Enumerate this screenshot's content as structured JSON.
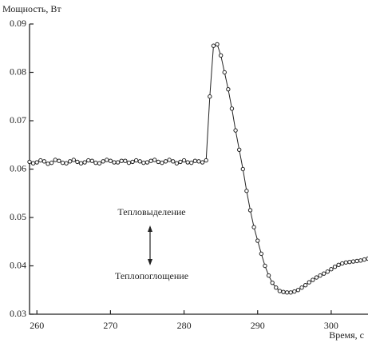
{
  "chart_data": {
    "type": "line",
    "y_label": "Мощность, Вт",
    "x_label": "Время, с",
    "annotations": [
      "Тепловыделение",
      "Теплопоглощение"
    ],
    "xlim": [
      259,
      305
    ],
    "xticks": [
      260,
      270,
      280,
      290,
      300
    ],
    "ylim": [
      0.03,
      0.09
    ],
    "yticks": [
      0.03,
      0.04,
      0.05,
      0.06,
      0.07,
      0.08,
      0.09
    ],
    "x": [
      259,
      259.5,
      260,
      260.5,
      261,
      261.5,
      262,
      262.5,
      263,
      263.5,
      264,
      264.5,
      265,
      265.5,
      266,
      266.5,
      267,
      267.5,
      268,
      268.5,
      269,
      269.5,
      270,
      270.5,
      271,
      271.5,
      272,
      272.5,
      273,
      273.5,
      274,
      274.5,
      275,
      275.5,
      276,
      276.5,
      277,
      277.5,
      278,
      278.5,
      279,
      279.5,
      280,
      280.5,
      281,
      281.5,
      282,
      282.5,
      283,
      283.5,
      284,
      284.5,
      285,
      285.5,
      286,
      286.5,
      287,
      287.5,
      288,
      288.5,
      289,
      289.5,
      290,
      290.5,
      291,
      291.5,
      292,
      292.5,
      293,
      293.5,
      294,
      294.5,
      295,
      295.5,
      296,
      296.5,
      297,
      297.5,
      298,
      298.5,
      299,
      299.5,
      300,
      300.5,
      301,
      301.5,
      302,
      302.5,
      303,
      303.5,
      304,
      304.5,
      305
    ],
    "series": [
      {
        "color": "#222",
        "values": [
          0.0615,
          0.0612,
          0.0614,
          0.0618,
          0.0616,
          0.0611,
          0.0613,
          0.0619,
          0.0617,
          0.0613,
          0.0612,
          0.0616,
          0.0619,
          0.0615,
          0.0612,
          0.0614,
          0.0618,
          0.0617,
          0.0613,
          0.0612,
          0.0616,
          0.0619,
          0.0617,
          0.0614,
          0.0614,
          0.0617,
          0.0617,
          0.0613,
          0.0615,
          0.0618,
          0.0616,
          0.0613,
          0.0614,
          0.0617,
          0.0619,
          0.0615,
          0.0613,
          0.0616,
          0.0619,
          0.0616,
          0.0612,
          0.0615,
          0.0618,
          0.0614,
          0.0613,
          0.0617,
          0.0616,
          0.0614,
          0.0618,
          0.075,
          0.0855,
          0.0858,
          0.0835,
          0.08,
          0.0765,
          0.0725,
          0.068,
          0.064,
          0.06,
          0.0555,
          0.0515,
          0.048,
          0.0452,
          0.0425,
          0.04,
          0.038,
          0.0365,
          0.0355,
          0.0348,
          0.0346,
          0.0345,
          0.0345,
          0.0347,
          0.035,
          0.0355,
          0.036,
          0.0366,
          0.0371,
          0.0376,
          0.038,
          0.0384,
          0.0388,
          0.0393,
          0.0398,
          0.0402,
          0.0405,
          0.0407,
          0.0408,
          0.0409,
          0.041,
          0.0411,
          0.0413,
          0.0415
        ]
      }
    ]
  }
}
